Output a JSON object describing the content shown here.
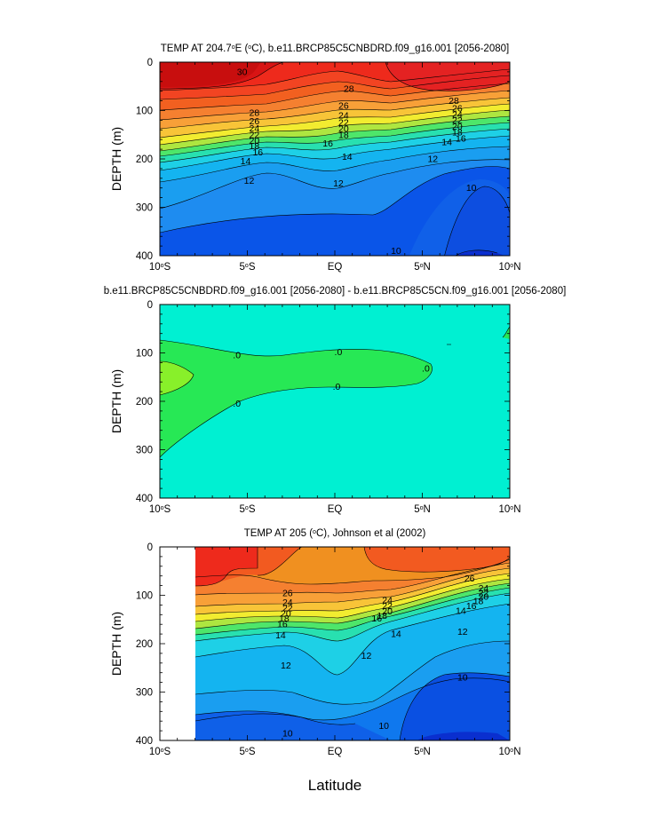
{
  "figure": {
    "x_title": "Latitude"
  },
  "chart_data": [
    {
      "type": "heatmap",
      "title": "TEMP AT 204.7°E (°C), b.e11.BRCP85C5CNBDRD.f09_g16.001 [2056-2080]",
      "title_parts": [
        "TEMP AT 204.7",
        "o",
        "E (",
        "o",
        "C), b.e11.BRCP85C5CNBDRD.f09_g16.001 [2056-2080]"
      ],
      "xlabel": "",
      "ylabel": "DEPTH (m)",
      "x_ticks": [
        "10°S",
        "5°S",
        "EQ",
        "5°N",
        "10°N"
      ],
      "x_ticks_parts": [
        [
          "10",
          "S"
        ],
        [
          "5",
          "S"
        ],
        [
          "EQ",
          ""
        ],
        [
          "5",
          "N"
        ],
        [
          "10",
          "N"
        ]
      ],
      "y_ticks": [
        "0",
        "100",
        "200",
        "300",
        "400"
      ],
      "xlim": [
        -10,
        10
      ],
      "ylim": [
        0,
        400
      ],
      "contour_labels": [
        {
          "text": "30",
          "lat": -5.3,
          "depth": 20
        },
        {
          "text": "28",
          "lat": 0.8,
          "depth": 55
        },
        {
          "text": "28",
          "lat": -4.6,
          "depth": 105
        },
        {
          "text": "26",
          "lat": -4.6,
          "depth": 122
        },
        {
          "text": "24",
          "lat": -4.6,
          "depth": 137
        },
        {
          "text": "22",
          "lat": -4.6,
          "depth": 150
        },
        {
          "text": "20",
          "lat": -4.6,
          "depth": 162
        },
        {
          "text": "18",
          "lat": -4.6,
          "depth": 173
        },
        {
          "text": "16",
          "lat": -4.4,
          "depth": 186
        },
        {
          "text": "14",
          "lat": -5.1,
          "depth": 205
        },
        {
          "text": "12",
          "lat": -4.9,
          "depth": 245
        },
        {
          "text": "26",
          "lat": 0.5,
          "depth": 90
        },
        {
          "text": "24",
          "lat": 0.5,
          "depth": 110
        },
        {
          "text": "22",
          "lat": 0.5,
          "depth": 125
        },
        {
          "text": "20",
          "lat": 0.5,
          "depth": 138
        },
        {
          "text": "18",
          "lat": 0.5,
          "depth": 150
        },
        {
          "text": "16",
          "lat": -0.4,
          "depth": 168
        },
        {
          "text": "14",
          "lat": 0.7,
          "depth": 195
        },
        {
          "text": "12",
          "lat": 0.2,
          "depth": 250
        },
        {
          "text": "28",
          "lat": 6.8,
          "depth": 80
        },
        {
          "text": "26",
          "lat": 7.0,
          "depth": 95
        },
        {
          "text": "24",
          "lat": 7.0,
          "depth": 108
        },
        {
          "text": "22",
          "lat": 7.0,
          "depth": 120
        },
        {
          "text": "20",
          "lat": 7.0,
          "depth": 133
        },
        {
          "text": "18",
          "lat": 7.0,
          "depth": 145
        },
        {
          "text": "16",
          "lat": 7.2,
          "depth": 158
        },
        {
          "text": "14",
          "lat": 6.4,
          "depth": 165
        },
        {
          "text": "12",
          "lat": 5.6,
          "depth": 200
        },
        {
          "text": "10",
          "lat": 7.8,
          "depth": 260
        },
        {
          "text": "10",
          "lat": 3.5,
          "depth": 390
        }
      ]
    },
    {
      "type": "heatmap",
      "title": "b.e11.BRCP85C5CNBDRD.f09_g16.001 [2056-2080] - b.e11.BRCP85C5CN.f09_g16.001 [2056-2080]",
      "xlabel": "",
      "ylabel": "DEPTH (m)",
      "x_ticks": [
        "10°S",
        "5°S",
        "EQ",
        "5°N",
        "10°N"
      ],
      "x_ticks_parts": [
        [
          "10",
          "S"
        ],
        [
          "5",
          "S"
        ],
        [
          "EQ",
          ""
        ],
        [
          "5",
          "N"
        ],
        [
          "10",
          "N"
        ]
      ],
      "y_ticks": [
        "0",
        "100",
        "200",
        "300",
        "400"
      ],
      "xlim": [
        -10,
        10
      ],
      "ylim": [
        0,
        400
      ],
      "contour_labels": [
        {
          "text": ".0",
          "lat": -5.6,
          "depth": 105
        },
        {
          "text": ".0",
          "lat": 0.2,
          "depth": 98
        },
        {
          "text": ".0",
          "lat": 0.1,
          "depth": 170
        },
        {
          "text": ".0",
          "lat": 5.2,
          "depth": 132
        },
        {
          "text": ".0",
          "lat": -5.6,
          "depth": 205
        }
      ]
    },
    {
      "type": "heatmap",
      "title": "TEMP AT 205 (°C), Johnson et al (2002)",
      "title_parts": [
        "TEMP AT 205 (",
        "o",
        "C), Johnson et al (2002)"
      ],
      "xlabel": "Latitude",
      "ylabel": "DEPTH (m)",
      "x_ticks": [
        "10°S",
        "5°S",
        "EQ",
        "5°N",
        "10°N"
      ],
      "x_ticks_parts": [
        [
          "10",
          "S"
        ],
        [
          "5",
          "S"
        ],
        [
          "EQ",
          ""
        ],
        [
          "5",
          "N"
        ],
        [
          "10",
          "N"
        ]
      ],
      "y_ticks": [
        "0",
        "100",
        "200",
        "300",
        "400"
      ],
      "xlim": [
        -10,
        10
      ],
      "ylim": [
        0,
        400
      ],
      "data_start_lat": -8,
      "contour_labels": [
        {
          "text": "26",
          "lat": -2.7,
          "depth": 95
        },
        {
          "text": "24",
          "lat": -2.7,
          "depth": 115
        },
        {
          "text": "22",
          "lat": -2.7,
          "depth": 127
        },
        {
          "text": "20",
          "lat": -2.8,
          "depth": 138
        },
        {
          "text": "18",
          "lat": -2.9,
          "depth": 148
        },
        {
          "text": "16",
          "lat": -3.0,
          "depth": 160
        },
        {
          "text": "14",
          "lat": -3.1,
          "depth": 183
        },
        {
          "text": "12",
          "lat": -2.8,
          "depth": 245
        },
        {
          "text": "24",
          "lat": 3.0,
          "depth": 110
        },
        {
          "text": "22",
          "lat": 3.0,
          "depth": 122
        },
        {
          "text": "20",
          "lat": 3.0,
          "depth": 133
        },
        {
          "text": "18",
          "lat": 2.7,
          "depth": 142
        },
        {
          "text": "16",
          "lat": 2.4,
          "depth": 148
        },
        {
          "text": "14",
          "lat": 3.5,
          "depth": 180
        },
        {
          "text": "12",
          "lat": 1.8,
          "depth": 225
        },
        {
          "text": "10",
          "lat": 2.8,
          "depth": 370
        },
        {
          "text": "10",
          "lat": 7.3,
          "depth": 270
        },
        {
          "text": "10",
          "lat": -2.7,
          "depth": 385
        },
        {
          "text": "26",
          "lat": 7.7,
          "depth": 65
        },
        {
          "text": "24",
          "lat": 8.5,
          "depth": 85
        },
        {
          "text": "22",
          "lat": 8.5,
          "depth": 95
        },
        {
          "text": "20",
          "lat": 8.5,
          "depth": 103
        },
        {
          "text": "18",
          "lat": 8.2,
          "depth": 112
        },
        {
          "text": "16",
          "lat": 7.8,
          "depth": 122
        },
        {
          "text": "14",
          "lat": 7.2,
          "depth": 132
        },
        {
          "text": "12",
          "lat": 7.3,
          "depth": 175
        }
      ]
    }
  ]
}
